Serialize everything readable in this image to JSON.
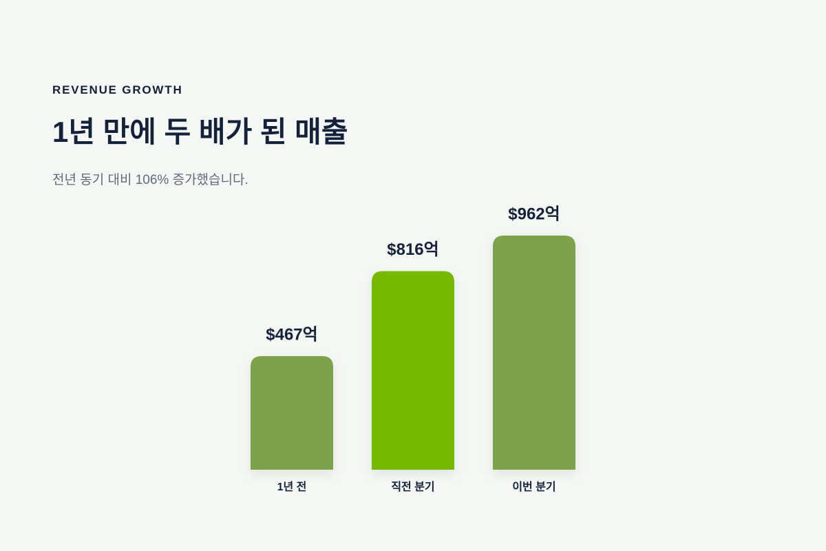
{
  "chart_data": {
    "type": "bar",
    "kicker": "REVENUE GROWTH",
    "title": "1년 만에 두 배가 된 매출",
    "subtitle": "전년 동기 대비 106% 증가했습니다.",
    "categories": [
      "1년 전",
      "직전 분기",
      "이번 분기"
    ],
    "values": [
      467,
      816,
      962
    ],
    "value_labels": [
      "$467억",
      "$816억",
      "$962억"
    ],
    "colors": [
      "#7ba348",
      "#76b900",
      "#7ba348"
    ]
  }
}
